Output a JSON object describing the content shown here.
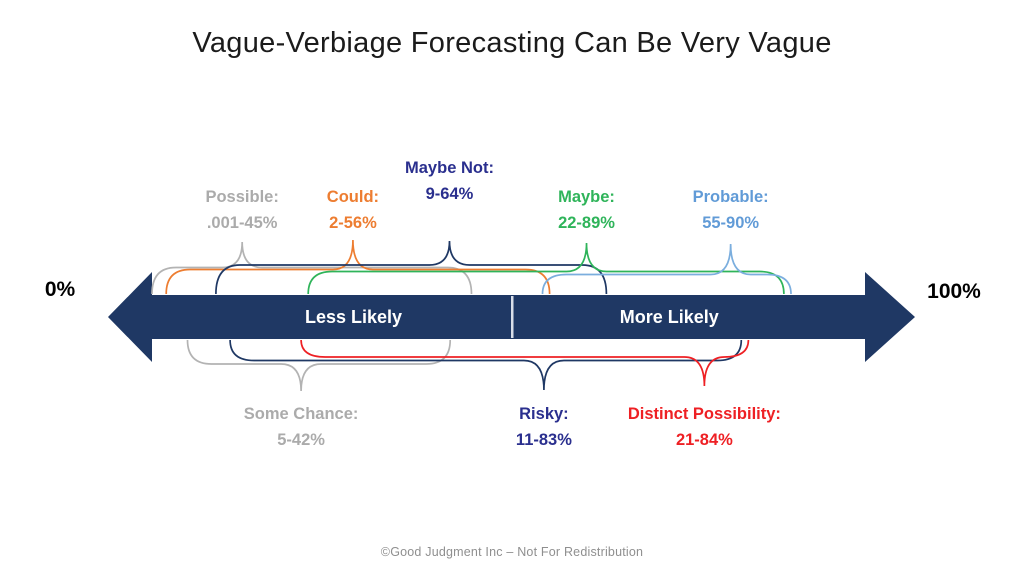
{
  "title": "Vague-Verbiage Forecasting Can Be Very Vague",
  "axis": {
    "min_label": "0%",
    "max_label": "100%",
    "left_segment_label": "Less Likely",
    "right_segment_label": "More Likely",
    "arrow_color": "#1f3864",
    "divider_color": "#d9dee8"
  },
  "footer": {
    "text": "©Good Judgment Inc – Not For Redistribution"
  },
  "chart_data": {
    "type": "interval-ranges",
    "title": "Vague-Verbiage Forecasting Can Be Very Vague",
    "x_axis": {
      "min": 0,
      "max": 100,
      "unit": "%",
      "min_label": "0%",
      "max_label": "100%"
    },
    "segments": [
      "Less Likely",
      "More Likely"
    ],
    "terms": [
      {
        "term": "Possible:",
        "range_text": ".001-45%",
        "low": 0.001,
        "high": 45,
        "color": "#ababab",
        "brace_color": "#b3b3b3",
        "side": "top",
        "anchor_pct": 12.7,
        "raised": false
      },
      {
        "term": "Could:",
        "range_text": "2-56%",
        "low": 2,
        "high": 56,
        "color": "#ed7d31",
        "brace_color": "#ed7d31",
        "side": "top",
        "anchor_pct": 28.3,
        "raised": false
      },
      {
        "term": "Maybe Not:",
        "range_text": "9-64%",
        "low": 9,
        "high": 64,
        "color": "#2a2f8e",
        "brace_color": "#1f3864",
        "side": "top",
        "anchor_pct": 41.9,
        "raised": true
      },
      {
        "term": "Maybe:",
        "range_text": "22-89%",
        "low": 22,
        "high": 89,
        "color": "#2fb45a",
        "brace_color": "#2fb45a",
        "side": "top",
        "anchor_pct": 61.2,
        "raised": false
      },
      {
        "term": "Probable:",
        "range_text": "55-90%",
        "low": 55,
        "high": 90,
        "color": "#619bd7",
        "brace_color": "#7baede",
        "side": "top",
        "anchor_pct": 81.5,
        "raised": false
      },
      {
        "term": "Some Chance:",
        "range_text": "5-42%",
        "low": 5,
        "high": 42,
        "color": "#ababab",
        "brace_color": "#b3b3b3",
        "side": "bottom",
        "anchor_pct": 21.0,
        "raised": false
      },
      {
        "term": "Risky:",
        "range_text": "11-83%",
        "low": 11,
        "high": 83,
        "color": "#2a2f8e",
        "brace_color": "#1f3864",
        "side": "bottom",
        "anchor_pct": 55.2,
        "raised": false
      },
      {
        "term": "Distinct Possibility:",
        "range_text": "21-84%",
        "low": 21,
        "high": 84,
        "color": "#ee2024",
        "brace_color": "#ee2024",
        "side": "bottom",
        "anchor_pct": 77.8,
        "raised": false
      }
    ]
  }
}
